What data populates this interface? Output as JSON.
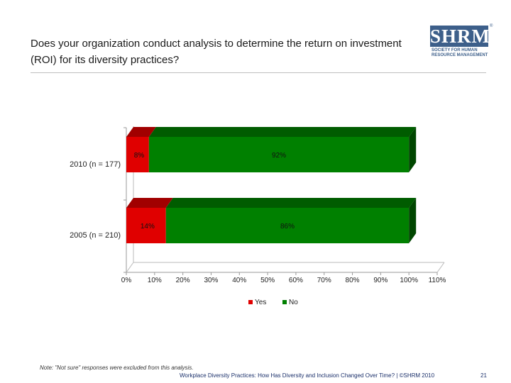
{
  "header": {
    "title": "Does your organization conduct analysis to determine the return on investment (ROI) for its diversity practices?",
    "logo": {
      "mark": "SHRM",
      "registered": "®",
      "lines": [
        "SOCIETY FOR HUMAN",
        "RESOURCE MANAGEMENT"
      ]
    }
  },
  "chart_data": {
    "type": "bar",
    "orientation": "horizontal",
    "stacked": true,
    "categories": [
      "2010 (n = 177)",
      "2005 (n = 210)"
    ],
    "series": [
      {
        "name": "Yes",
        "values": [
          8,
          14
        ],
        "labels": [
          "8%",
          "14%"
        ],
        "color": "#e00000"
      },
      {
        "name": "No",
        "values": [
          92,
          86
        ],
        "labels": [
          "92%",
          "86%"
        ],
        "color": "#008000"
      }
    ],
    "xlim": [
      0,
      110
    ],
    "xticks": [
      "0%",
      "10%",
      "20%",
      "30%",
      "40%",
      "50%",
      "60%",
      "70%",
      "80%",
      "90%",
      "100%",
      "110%"
    ],
    "legend_position": "bottom",
    "grid": false,
    "style": "3d"
  },
  "footer": {
    "note": "Note: \"Not sure\" responses were excluded from this analysis.",
    "source": "Workplace Diversity Practices: How Has Diversity and Inclusion Changed Over Time? | ©SHRM 2010",
    "page": "21"
  }
}
